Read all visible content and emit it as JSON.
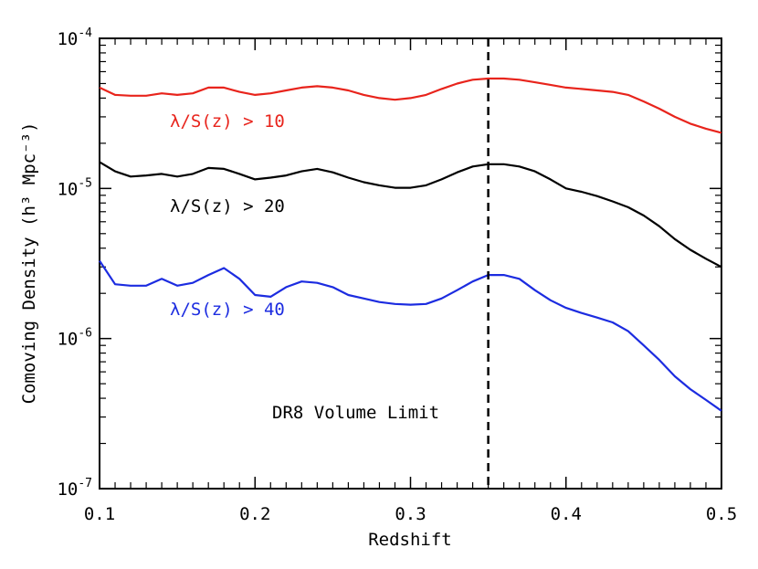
{
  "chart_data": {
    "type": "line",
    "xlabel": "Redshift",
    "ylabel": "Comoving Density (h³ Mpc⁻³)",
    "xlim": [
      0.1,
      0.5
    ],
    "ylim": [
      1e-07,
      0.0001
    ],
    "yscale": "log",
    "xticks": [
      0.1,
      0.2,
      0.3,
      0.4,
      0.5
    ],
    "xtick_labels": [
      "0.1",
      "0.2",
      "0.3",
      "0.4",
      "0.5"
    ],
    "yticks": [
      1e-07,
      1e-06,
      1e-05,
      0.0001
    ],
    "ytick_labels": [
      {
        "base": "10",
        "exp": "-7"
      },
      {
        "base": "10",
        "exp": "-6"
      },
      {
        "base": "10",
        "exp": "-5"
      },
      {
        "base": "10",
        "exp": "-4"
      }
    ],
    "grid": false,
    "legend": "none",
    "x": [
      0.1,
      0.11,
      0.12,
      0.13,
      0.14,
      0.15,
      0.16,
      0.17,
      0.18,
      0.19,
      0.2,
      0.21,
      0.22,
      0.23,
      0.24,
      0.25,
      0.26,
      0.27,
      0.28,
      0.29,
      0.3,
      0.31,
      0.32,
      0.33,
      0.34,
      0.35,
      0.36,
      0.37,
      0.38,
      0.39,
      0.4,
      0.41,
      0.42,
      0.43,
      0.44,
      0.45,
      0.46,
      0.47,
      0.48,
      0.49,
      0.5
    ],
    "series": [
      {
        "name": "λ/S(z) > 10",
        "color": "#e8241c",
        "values": [
          4.7e-05,
          4.2e-05,
          4.15e-05,
          4.15e-05,
          4.3e-05,
          4.2e-05,
          4.3e-05,
          4.7e-05,
          4.7e-05,
          4.4e-05,
          4.2e-05,
          4.3e-05,
          4.5e-05,
          4.7e-05,
          4.8e-05,
          4.7e-05,
          4.5e-05,
          4.2e-05,
          4e-05,
          3.9e-05,
          4e-05,
          4.2e-05,
          4.6e-05,
          5e-05,
          5.3e-05,
          5.4e-05,
          5.4e-05,
          5.3e-05,
          5.1e-05,
          4.9e-05,
          4.7e-05,
          4.6e-05,
          4.5e-05,
          4.4e-05,
          4.2e-05,
          3.8e-05,
          3.4e-05,
          3e-05,
          2.7e-05,
          2.5e-05,
          2.35e-05
        ]
      },
      {
        "name": "λ/S(z) > 20",
        "color": "#000000",
        "values": [
          1.5e-05,
          1.3e-05,
          1.2e-05,
          1.22e-05,
          1.25e-05,
          1.2e-05,
          1.25e-05,
          1.37e-05,
          1.35e-05,
          1.25e-05,
          1.15e-05,
          1.18e-05,
          1.22e-05,
          1.3e-05,
          1.35e-05,
          1.28e-05,
          1.18e-05,
          1.1e-05,
          1.05e-05,
          1.01e-05,
          1.01e-05,
          1.05e-05,
          1.15e-05,
          1.28e-05,
          1.4e-05,
          1.45e-05,
          1.45e-05,
          1.4e-05,
          1.3e-05,
          1.15e-05,
          1e-05,
          9.5e-06,
          8.9e-06,
          8.2e-06,
          7.5e-06,
          6.6e-06,
          5.6e-06,
          4.6e-06,
          3.9e-06,
          3.4e-06,
          3e-06
        ]
      },
      {
        "name": "λ/S(z) > 40",
        "color": "#1c2ce0",
        "values": [
          3.3e-06,
          2.3e-06,
          2.25e-06,
          2.25e-06,
          2.5e-06,
          2.25e-06,
          2.35e-06,
          2.65e-06,
          2.95e-06,
          2.5e-06,
          1.95e-06,
          1.9e-06,
          2.2e-06,
          2.4e-06,
          2.35e-06,
          2.2e-06,
          1.95e-06,
          1.85e-06,
          1.75e-06,
          1.7e-06,
          1.68e-06,
          1.7e-06,
          1.85e-06,
          2.1e-06,
          2.4e-06,
          2.65e-06,
          2.65e-06,
          2.5e-06,
          2.1e-06,
          1.8e-06,
          1.6e-06,
          1.48e-06,
          1.38e-06,
          1.28e-06,
          1.12e-06,
          9e-07,
          7.2e-07,
          5.6e-07,
          4.6e-07,
          3.9e-07,
          3.3e-07
        ]
      }
    ],
    "reference_line": {
      "x": 0.35,
      "style": "dashed",
      "color": "#000000"
    },
    "annotations": [
      {
        "text": "DR8 Volume Limit"
      }
    ]
  }
}
